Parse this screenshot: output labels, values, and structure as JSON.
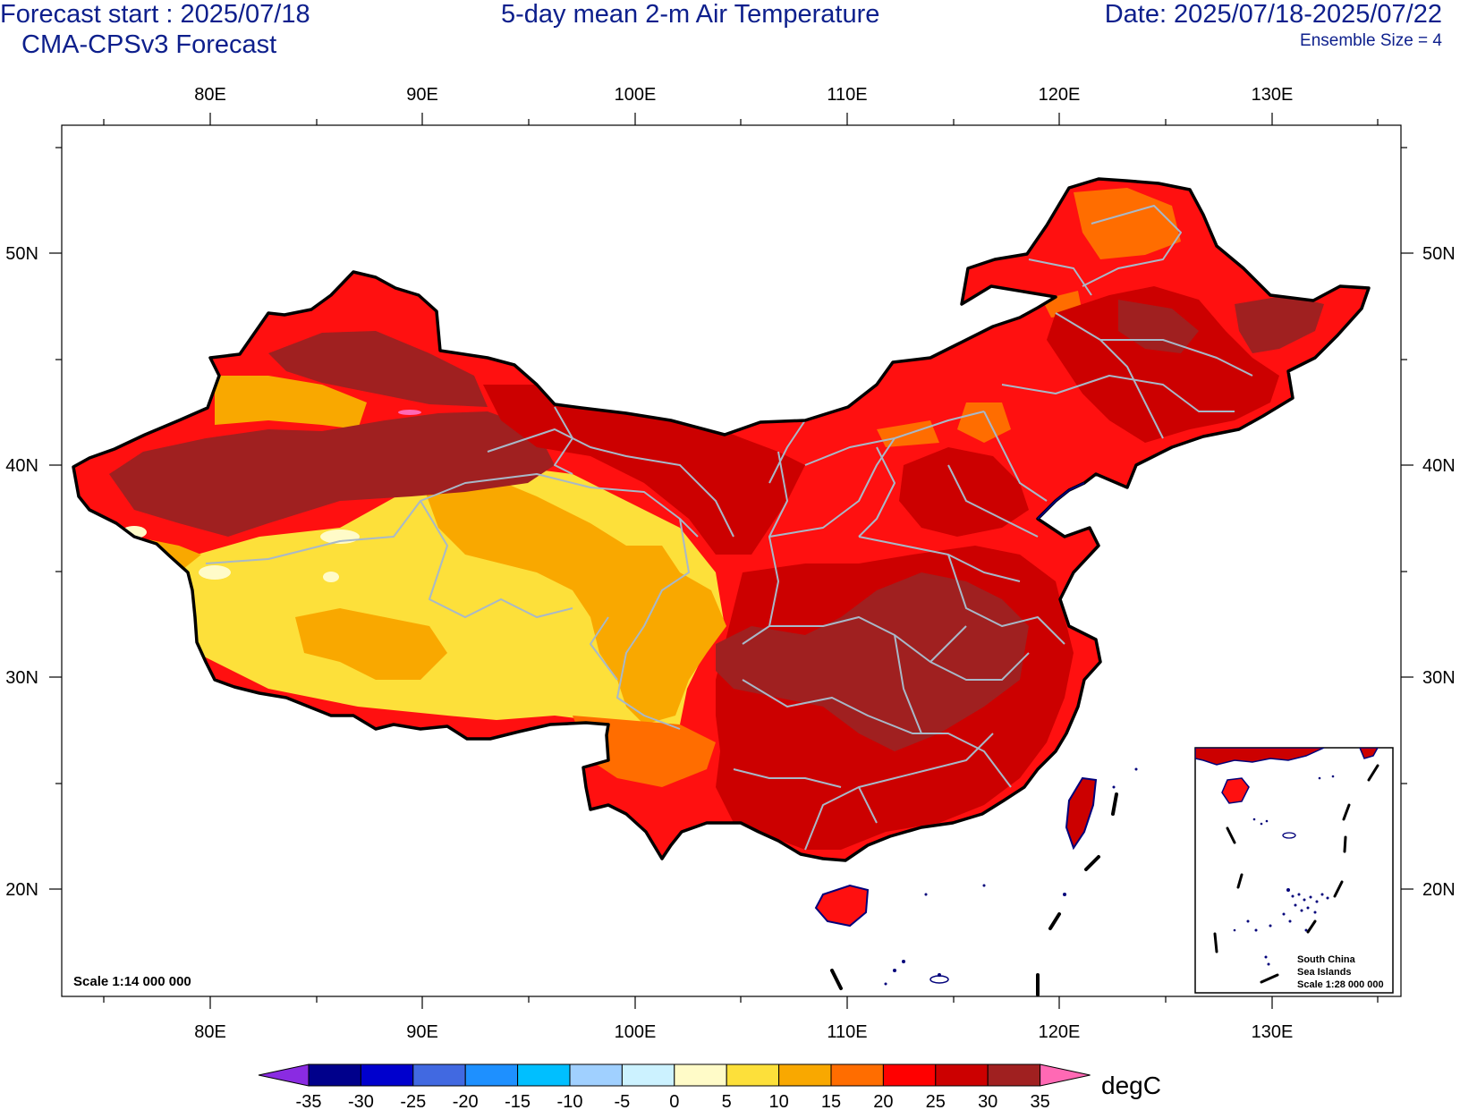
{
  "header": {
    "forecast_start": "Forecast start : 2025/07/18",
    "model": "CMA-CPSv3 Forecast",
    "title": "5-day mean 2-m Air Temperature",
    "date_range": "Date: 2025/07/18-2025/07/22",
    "ensemble_size": "Ensemble Size = 4"
  },
  "map": {
    "lon_ticks": [
      "80E",
      "90E",
      "100E",
      "110E",
      "120E",
      "130E"
    ],
    "lat_ticks": [
      "50N",
      "40N",
      "30N",
      "20N"
    ],
    "scale_label": "Scale 1:14 000 000",
    "inset": {
      "line1": "South China",
      "line2": "Sea Islands",
      "line3": "Scale 1:28 000 000"
    }
  },
  "colorbar": {
    "unit": "degC",
    "tick_labels": [
      "-35",
      "-30",
      "-25",
      "-20",
      "-15",
      "-10",
      "-5",
      "0",
      "5",
      "10",
      "15",
      "20",
      "25",
      "30",
      "35"
    ],
    "colors": [
      "#8a2be2",
      "#00008b",
      "#0000cd",
      "#4169e1",
      "#1e90ff",
      "#00bfff",
      "#a0d0ff",
      "#ccf2ff",
      "#fffbc8",
      "#fde03a",
      "#f9a800",
      "#ff6d00",
      "#ff0000",
      "#cc0000",
      "#a02020",
      "#ff69b4"
    ]
  }
}
